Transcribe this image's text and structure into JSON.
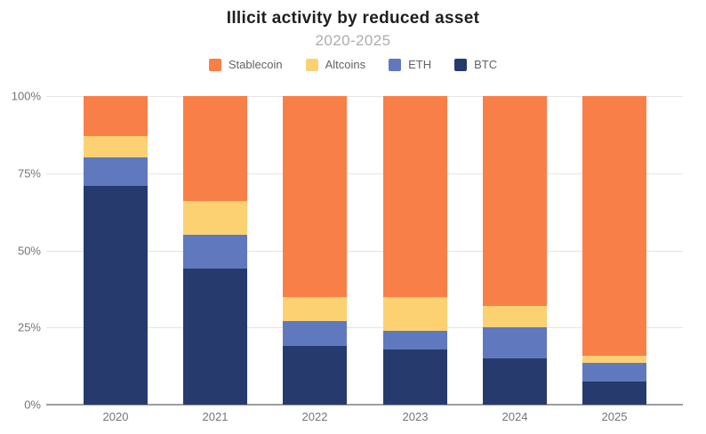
{
  "chart_data": {
    "type": "bar",
    "stacked": true,
    "orientation": "vertical",
    "title": "Illicit activity by reduced asset",
    "subtitle": "2020-2025",
    "unit": "%",
    "categories": [
      "2020",
      "2021",
      "2022",
      "2023",
      "2024",
      "2025"
    ],
    "series": [
      {
        "name": "Stablecoin",
        "color": "#F97F48",
        "values": [
          13,
          34,
          65,
          65,
          68,
          84
        ]
      },
      {
        "name": "Altcoins",
        "color": "#FBD172",
        "values": [
          7,
          11,
          8,
          11,
          7,
          2.5
        ]
      },
      {
        "name": "ETH",
        "color": "#6078BD",
        "values": [
          9,
          11,
          8,
          6,
          10,
          6
        ]
      },
      {
        "name": "BTC",
        "color": "#263A6E",
        "values": [
          71,
          44,
          19,
          18,
          15,
          7.5
        ]
      }
    ],
    "stack_order_bottom_to_top": [
      "BTC",
      "ETH",
      "Altcoins",
      "Stablecoin"
    ],
    "ylim": [
      0,
      100
    ],
    "yticks": [
      {
        "label": "100%",
        "value": 100
      },
      {
        "label": "75%",
        "value": 75
      },
      {
        "label": "50%",
        "value": 50
      },
      {
        "label": "25%",
        "value": 25
      },
      {
        "label": "0%",
        "value": 0
      }
    ],
    "grid": true,
    "legend_position": "top",
    "colors": {
      "title": "#1f1f1f",
      "subtitle": "#adadad",
      "axis_labels": "#757575",
      "legend_labels": "#5f6368",
      "gridline": "#e5e5e5",
      "baseline": "#9e9e9e",
      "background": "#ffffff"
    }
  }
}
